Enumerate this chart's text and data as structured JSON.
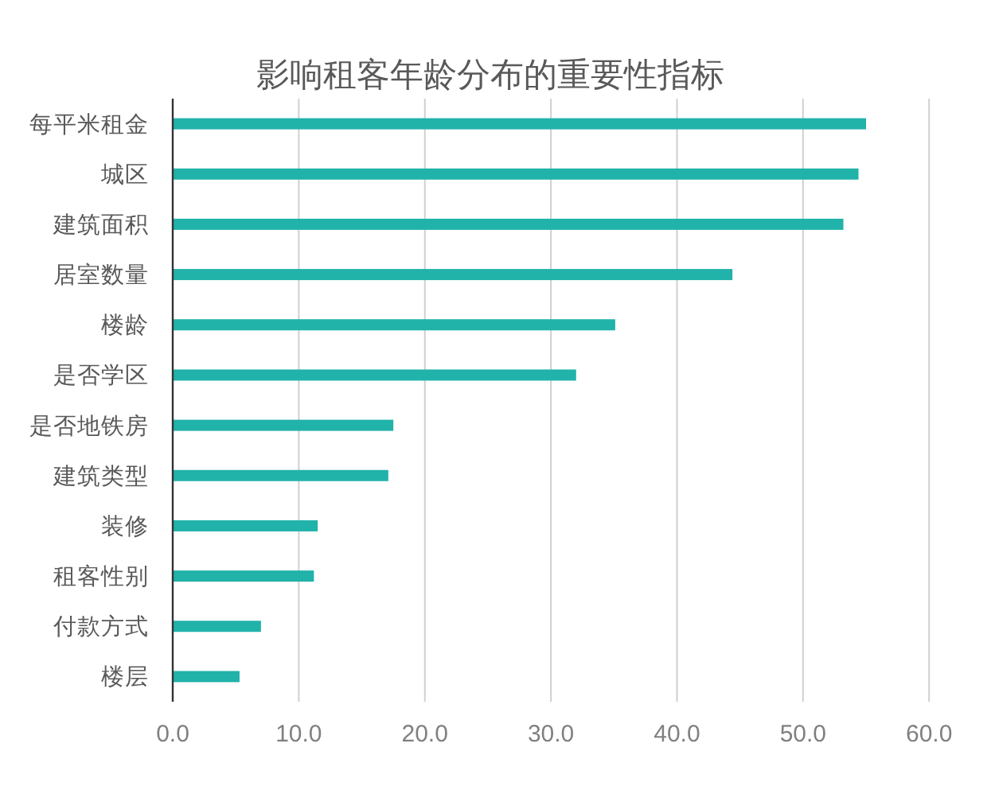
{
  "chart_data": {
    "type": "bar",
    "orientation": "horizontal",
    "title": "影响租客年龄分布的重要性指标",
    "categories": [
      "每平米租金",
      "城区",
      "建筑面积",
      "居室数量",
      "楼龄",
      "是否学区",
      "是否地铁房",
      "建筑类型",
      "装修",
      "租客性别",
      "付款方式",
      "楼层"
    ],
    "values": [
      55.0,
      54.4,
      53.2,
      44.4,
      35.1,
      32.0,
      17.5,
      17.1,
      11.5,
      11.2,
      7.0,
      5.3
    ],
    "color": "#21b2aa",
    "xlim": [
      0,
      60
    ],
    "xticks": [
      {
        "value": 0,
        "label": "0.0"
      },
      {
        "value": 10,
        "label": "10.0"
      },
      {
        "value": 20,
        "label": "20.0"
      },
      {
        "value": 30,
        "label": "30.0"
      },
      {
        "value": 40,
        "label": "40.0"
      },
      {
        "value": 50,
        "label": "50.0"
      },
      {
        "value": 60,
        "label": "60.0"
      }
    ],
    "grid": "x"
  }
}
